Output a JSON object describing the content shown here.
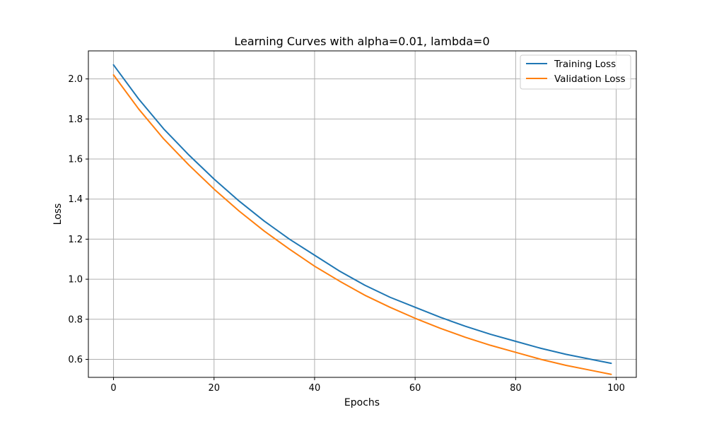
{
  "chart_data": {
    "type": "line",
    "title": "Learning Curves with alpha=0.01, lambda=0",
    "xlabel": "Epochs",
    "ylabel": "Loss",
    "xlim": [
      -5,
      104
    ],
    "ylim": [
      0.51,
      2.14
    ],
    "x_ticks": [
      0,
      20,
      40,
      60,
      80,
      100
    ],
    "y_ticks": [
      0.6,
      0.8,
      1.0,
      1.2,
      1.4,
      1.6,
      1.8,
      2.0
    ],
    "x_tick_labels": [
      "0",
      "20",
      "40",
      "60",
      "80",
      "100"
    ],
    "y_tick_labels": [
      "0.6",
      "0.8",
      "1.0",
      "1.2",
      "1.4",
      "1.6",
      "1.8",
      "2.0"
    ],
    "grid": true,
    "legend": "top-right",
    "x": [
      0,
      5,
      10,
      15,
      20,
      25,
      30,
      35,
      40,
      45,
      50,
      55,
      60,
      65,
      70,
      75,
      80,
      85,
      90,
      95,
      99
    ],
    "series": [
      {
        "name": "Training Loss",
        "color": "#1f77b4",
        "values": [
          2.07,
          1.9,
          1.75,
          1.62,
          1.5,
          1.39,
          1.29,
          1.2,
          1.12,
          1.04,
          0.97,
          0.91,
          0.86,
          0.81,
          0.765,
          0.725,
          0.69,
          0.655,
          0.625,
          0.6,
          0.58
        ]
      },
      {
        "name": "Validation Loss",
        "color": "#ff7f0e",
        "values": [
          2.02,
          1.85,
          1.7,
          1.57,
          1.45,
          1.34,
          1.24,
          1.15,
          1.065,
          0.99,
          0.92,
          0.86,
          0.805,
          0.755,
          0.71,
          0.67,
          0.635,
          0.6,
          0.57,
          0.545,
          0.525
        ]
      }
    ]
  }
}
